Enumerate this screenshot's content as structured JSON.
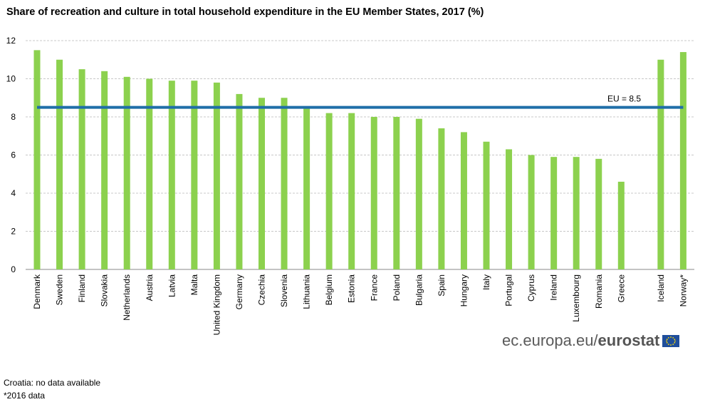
{
  "header": {
    "title": "Share of recreation and culture in total household expenditure in the EU Member States, 2017 (%)"
  },
  "chart_data": {
    "type": "bar",
    "title": "Share of recreation and culture in total household expenditure in the EU Member States, 2017 (%)",
    "xlabel": "",
    "ylabel": "",
    "ylim": [
      0,
      12
    ],
    "yticks": [
      0,
      2,
      4,
      6,
      8,
      10,
      12
    ],
    "grid": true,
    "categories": [
      "Denmark",
      "Sweden",
      "Finland",
      "Slovakia",
      "Netherlands",
      "Austria",
      "Latvia",
      "Malta",
      "United Kingdom",
      "Germany",
      "Czechia",
      "Slovenia",
      "Lithuania",
      "Belgium",
      "Estonia",
      "France",
      "Poland",
      "Bulgaria",
      "Spain",
      "Hungary",
      "Italy",
      "Portugal",
      "Cyprus",
      "Ireland",
      "Luxembourg",
      "Romania",
      "Greece",
      "Iceland",
      "Norway*"
    ],
    "values": [
      11.5,
      11.0,
      10.5,
      10.4,
      10.1,
      10.0,
      9.9,
      9.9,
      9.8,
      9.2,
      9.0,
      9.0,
      8.5,
      8.2,
      8.2,
      8.0,
      8.0,
      7.9,
      7.4,
      7.2,
      6.7,
      6.3,
      6.0,
      5.9,
      5.9,
      5.8,
      4.6,
      11.0,
      11.4
    ],
    "gap_before_index": 27,
    "reference_line": {
      "value": 8.5,
      "label": "EU = 8.5"
    },
    "colors": {
      "bar": "#8cd14e",
      "reference_line": "#1f6ea8",
      "grid": "#c8c8c8"
    }
  },
  "branding": {
    "site": "ec.europa.eu/",
    "brand": "eurostat"
  },
  "footnotes": {
    "note1": "Croatia: no data available",
    "note2": "*2016 data"
  }
}
